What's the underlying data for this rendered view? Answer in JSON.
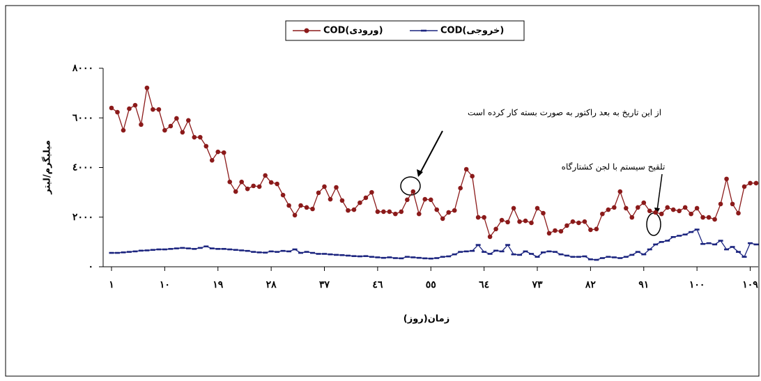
{
  "chart_data": {
    "type": "line",
    "x_label": "زمان(روز)",
    "y_label": "میلیگرم/لیتر",
    "annotations": [
      "از این تاریخ به بعد راکتور به صورت بسته کار کرده است",
      "تلقیح سیستم با لجن کشتارگاه"
    ],
    "x": [
      1,
      2,
      3,
      4,
      5,
      6,
      7,
      8,
      9,
      10,
      11,
      12,
      13,
      14,
      15,
      16,
      17,
      18,
      19,
      20,
      21,
      22,
      23,
      24,
      25,
      26,
      27,
      28,
      29,
      30,
      31,
      32,
      33,
      34,
      35,
      36,
      37,
      38,
      39,
      40,
      41,
      42,
      43,
      44,
      45,
      46,
      47,
      48,
      49,
      50,
      51,
      52,
      53,
      54,
      55,
      56,
      57,
      58,
      59,
      60,
      61,
      62,
      63,
      64,
      65,
      66,
      67,
      68,
      69,
      70,
      71,
      72,
      73,
      74,
      75,
      76,
      77,
      78,
      79,
      80,
      81,
      82,
      83,
      84,
      85,
      86,
      87,
      88,
      89,
      90,
      91,
      92,
      93,
      94,
      95,
      96,
      97,
      98,
      99,
      100,
      101,
      102,
      103,
      104,
      105,
      106,
      107,
      108,
      109,
      110
    ],
    "series": [
      {
        "name": "COD(ورودی)",
        "color": "#8b1a1a",
        "marker": "circle",
        "values": [
          6400,
          6230,
          5500,
          6370,
          6510,
          5730,
          7210,
          6340,
          6340,
          5500,
          5670,
          5980,
          5420,
          5900,
          5220,
          5220,
          4860,
          4290,
          4630,
          4600,
          3420,
          3030,
          3420,
          3140,
          3260,
          3230,
          3680,
          3400,
          3340,
          2890,
          2470,
          2080,
          2470,
          2390,
          2330,
          2980,
          3230,
          2720,
          3200,
          2670,
          2270,
          2300,
          2580,
          2780,
          3000,
          2220,
          2220,
          2220,
          2130,
          2220,
          2700,
          3030,
          2130,
          2720,
          2700,
          2300,
          1940,
          2190,
          2270,
          3170,
          3930,
          3650,
          1990,
          1990,
          1210,
          1520,
          1880,
          1800,
          2360,
          1820,
          1850,
          1770,
          2360,
          2160,
          1350,
          1460,
          1430,
          1660,
          1820,
          1770,
          1820,
          1490,
          1520,
          2130,
          2300,
          2390,
          3030,
          2360,
          1990,
          2390,
          2580,
          2250,
          2190,
          2130,
          2390,
          2300,
          2250,
          2390,
          2130,
          2360,
          1990,
          1990,
          1910,
          2530,
          3540,
          2530,
          2160,
          3230,
          3370,
          3370
        ]
      },
      {
        "name": "COD(خروجی)",
        "color": "#1a237e",
        "marker": "dash",
        "values": [
          560,
          560,
          580,
          600,
          620,
          650,
          660,
          680,
          700,
          700,
          720,
          740,
          760,
          740,
          720,
          760,
          820,
          740,
          720,
          720,
          700,
          680,
          660,
          640,
          600,
          580,
          570,
          620,
          600,
          640,
          620,
          700,
          560,
          600,
          560,
          520,
          520,
          500,
          480,
          470,
          450,
          430,
          420,
          430,
          400,
          380,
          360,
          380,
          350,
          340,
          400,
          380,
          360,
          340,
          330,
          350,
          400,
          420,
          500,
          600,
          620,
          640,
          880,
          600,
          520,
          650,
          620,
          880,
          500,
          480,
          620,
          520,
          400,
          580,
          620,
          600,
          500,
          450,
          400,
          400,
          420,
          300,
          280,
          350,
          400,
          380,
          350,
          400,
          480,
          600,
          500,
          700,
          900,
          1000,
          1050,
          1200,
          1250,
          1300,
          1400,
          1500,
          920,
          950,
          900,
          1050,
          700,
          800,
          600,
          400,
          950,
          900
        ]
      }
    ],
    "xlim": [
      1,
      110
    ],
    "xticks": [
      {
        "value": 1,
        "label": "١"
      },
      {
        "value": 10,
        "label": "١٠"
      },
      {
        "value": 19,
        "label": "١٩"
      },
      {
        "value": 28,
        "label": "٢٨"
      },
      {
        "value": 37,
        "label": "٣٧"
      },
      {
        "value": 46,
        "label": "٤٦"
      },
      {
        "value": 55,
        "label": "٥٥"
      },
      {
        "value": 64,
        "label": "٦٤"
      },
      {
        "value": 73,
        "label": "٧٣"
      },
      {
        "value": 82,
        "label": "٨٢"
      },
      {
        "value": 91,
        "label": "٩١"
      },
      {
        "value": 100,
        "label": "١٠٠"
      },
      {
        "value": 109,
        "label": "١٠٩"
      }
    ],
    "ylim": [
      0,
      8000
    ],
    "yticks": [
      {
        "value": 0,
        "label": "٠"
      },
      {
        "value": 2000,
        "label": "٢٠٠٠"
      },
      {
        "value": 4000,
        "label": "٤٠٠٠"
      },
      {
        "value": 6000,
        "label": "٦٠٠٠"
      },
      {
        "value": 8000,
        "label": "٨٠٠٠"
      }
    ],
    "grid": false,
    "legend": "top"
  }
}
